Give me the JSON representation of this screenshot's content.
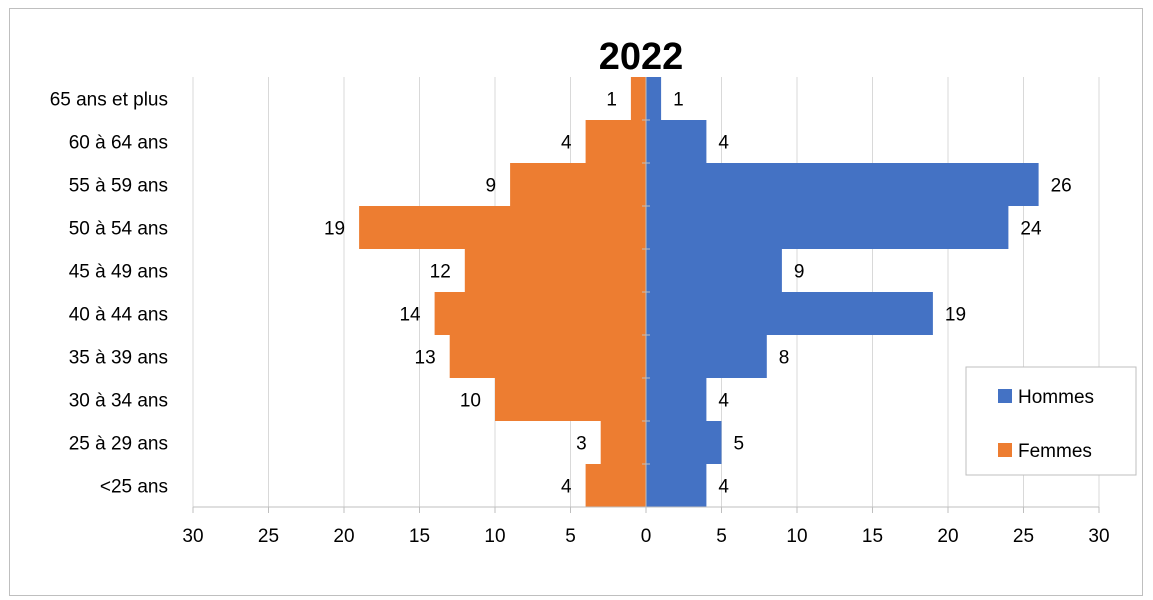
{
  "chart_data": {
    "type": "bar",
    "orientation": "horizontal",
    "layout": "population-pyramid",
    "title": "2022",
    "categories": [
      "65 ans et plus",
      "60 à 64 ans",
      "55 à 59 ans",
      "50 à 54 ans",
      "45 à 49 ans",
      "40 à 44 ans",
      "35 à 39 ans",
      "30 à 34 ans",
      "25 à 29 ans",
      "<25 ans"
    ],
    "series": [
      {
        "name": "Hommes",
        "color": "#4472C4",
        "direction": "right",
        "values": [
          1,
          4,
          26,
          24,
          9,
          19,
          8,
          4,
          5,
          4
        ]
      },
      {
        "name": "Femmes",
        "color": "#ED7D31",
        "direction": "left",
        "values": [
          1,
          4,
          9,
          19,
          12,
          14,
          13,
          10,
          3,
          4
        ]
      }
    ],
    "xlim": [
      -30,
      30
    ],
    "x_ticks": [
      -30,
      -25,
      -20,
      -15,
      -10,
      -5,
      0,
      5,
      10,
      15,
      20,
      25,
      30
    ],
    "x_tick_labels": [
      "30",
      "25",
      "20",
      "15",
      "10",
      "5",
      "0",
      "5",
      "10",
      "15",
      "20",
      "25",
      "30"
    ],
    "grid": true,
    "legend_position": "right"
  }
}
